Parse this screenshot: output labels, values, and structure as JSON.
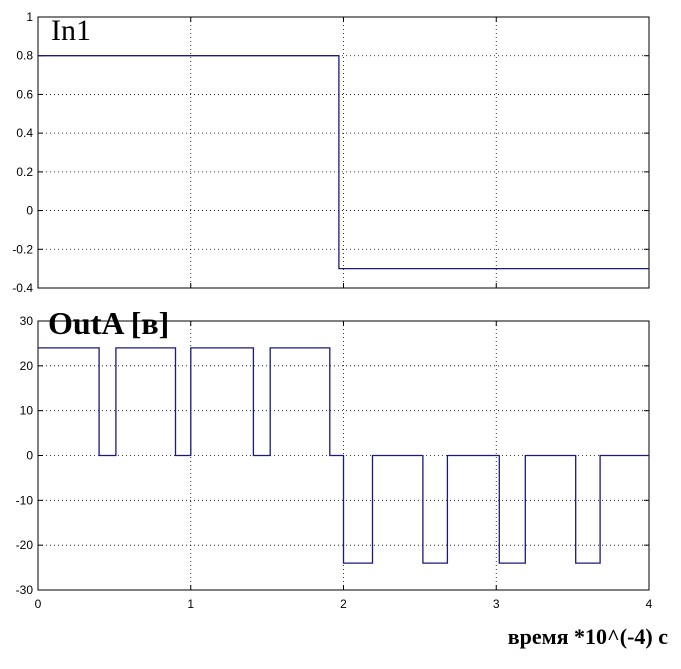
{
  "chart_data": [
    {
      "type": "line",
      "title": "In1",
      "xlim": [
        0,
        4
      ],
      "ylim": [
        -0.4,
        1
      ],
      "xticks": [
        0,
        1,
        2,
        3,
        4
      ],
      "yticks": [
        "1",
        "0.8",
        "0.6",
        "0.4",
        "0.2",
        "0",
        "-0.2",
        "-0.4"
      ],
      "ytick_values": [
        1,
        0.8,
        0.6,
        0.4,
        0.2,
        0,
        -0.2,
        -0.4
      ],
      "grid": true,
      "series": [
        {
          "step": true,
          "x": [
            0,
            1.97,
            1.97,
            4
          ],
          "y": [
            0.8,
            0.8,
            -0.3,
            -0.3
          ]
        }
      ]
    },
    {
      "type": "line",
      "title": "OutA [в]",
      "xlim": [
        0,
        4
      ],
      "ylim": [
        -30,
        30
      ],
      "xticks": [
        "0",
        "1",
        "2",
        "3",
        "4"
      ],
      "xtick_values": [
        0,
        1,
        2,
        3,
        4
      ],
      "yticks": [
        "30",
        "20",
        "10",
        "0",
        "-10",
        "-20",
        "-30"
      ],
      "ytick_values": [
        30,
        20,
        10,
        0,
        -10,
        -20,
        -30
      ],
      "grid": true,
      "xlabel": "время *10^(-4) c",
      "series": [
        {
          "step": true,
          "x": [
            0,
            0.4,
            0.4,
            0.51,
            0.51,
            0.9,
            0.9,
            1.0,
            1.0,
            1.41,
            1.41,
            1.52,
            1.52,
            1.91,
            1.91,
            2.0,
            2.0,
            2.19,
            2.19,
            2.52,
            2.52,
            2.68,
            2.68,
            3.02,
            3.02,
            3.19,
            3.19,
            3.52,
            3.52,
            3.68,
            3.68,
            4.0
          ],
          "y": [
            24,
            24,
            0,
            0,
            24,
            24,
            0,
            0,
            24,
            24,
            0,
            0,
            24,
            24,
            0,
            0,
            -24,
            -24,
            0,
            0,
            -24,
            -24,
            0,
            0,
            -24,
            -24,
            0,
            0,
            -24,
            -24,
            0,
            0
          ]
        }
      ]
    }
  ]
}
